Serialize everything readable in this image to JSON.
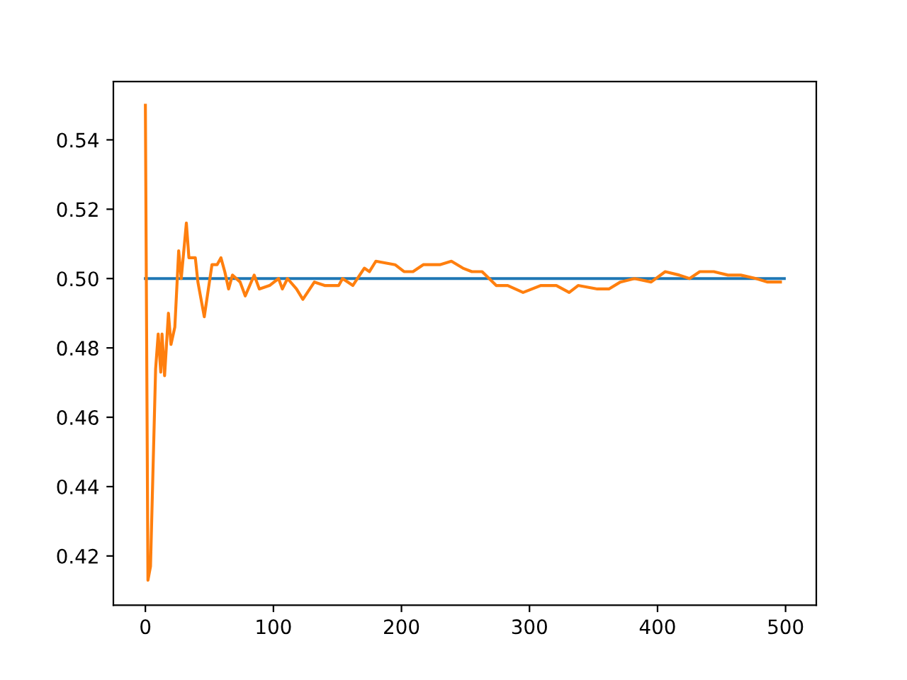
{
  "chart_data": {
    "type": "line",
    "xlim": [
      -25,
      524
    ],
    "ylim": [
      0.4058,
      0.5568
    ],
    "xticks": [
      0,
      100,
      200,
      300,
      400,
      500
    ],
    "yticks": [
      {
        "value": 0.42,
        "label": "0.42"
      },
      {
        "value": 0.44,
        "label": "0.44"
      },
      {
        "value": 0.46,
        "label": "0.46"
      },
      {
        "value": 0.48,
        "label": "0.48"
      },
      {
        "value": 0.5,
        "label": "0.50"
      },
      {
        "value": 0.52,
        "label": "0.52"
      },
      {
        "value": 0.54,
        "label": "0.54"
      }
    ],
    "grid": false,
    "legend": false,
    "marker": "none",
    "line_style": "solid",
    "series": [
      {
        "color": "#1f77b4",
        "x": [
          0,
          499
        ],
        "values": [
          0.5,
          0.5
        ]
      },
      {
        "color": "#ff7f0e",
        "x": [
          0,
          2,
          4,
          8,
          10,
          12,
          13,
          15,
          18,
          20,
          23,
          26,
          28,
          32,
          34,
          39,
          41,
          46,
          52,
          56,
          59,
          62,
          65,
          68,
          74,
          78,
          85,
          89,
          97,
          104,
          107,
          111,
          118,
          123,
          132,
          140,
          151,
          154,
          162,
          171,
          175,
          180,
          195,
          202,
          209,
          217,
          230,
          239,
          248,
          255,
          263,
          274,
          283,
          295,
          309,
          321,
          331,
          338,
          353,
          362,
          371,
          382,
          395,
          406,
          417,
          425,
          433,
          444,
          455,
          465,
          477,
          486,
          496
        ],
        "values": [
          0.55,
          0.413,
          0.417,
          0.474,
          0.484,
          0.473,
          0.484,
          0.472,
          0.49,
          0.481,
          0.486,
          0.508,
          0.5,
          0.516,
          0.506,
          0.506,
          0.499,
          0.489,
          0.504,
          0.504,
          0.506,
          0.502,
          0.497,
          0.501,
          0.499,
          0.495,
          0.501,
          0.497,
          0.498,
          0.5,
          0.497,
          0.5,
          0.497,
          0.494,
          0.499,
          0.498,
          0.498,
          0.5,
          0.498,
          0.503,
          0.502,
          0.505,
          0.504,
          0.502,
          0.502,
          0.504,
          0.504,
          0.505,
          0.503,
          0.502,
          0.502,
          0.498,
          0.498,
          0.496,
          0.498,
          0.498,
          0.496,
          0.498,
          0.497,
          0.497,
          0.499,
          0.5,
          0.499,
          0.502,
          0.501,
          0.5,
          0.502,
          0.502,
          0.501,
          0.501,
          0.5,
          0.499,
          0.499
        ]
      }
    ]
  }
}
